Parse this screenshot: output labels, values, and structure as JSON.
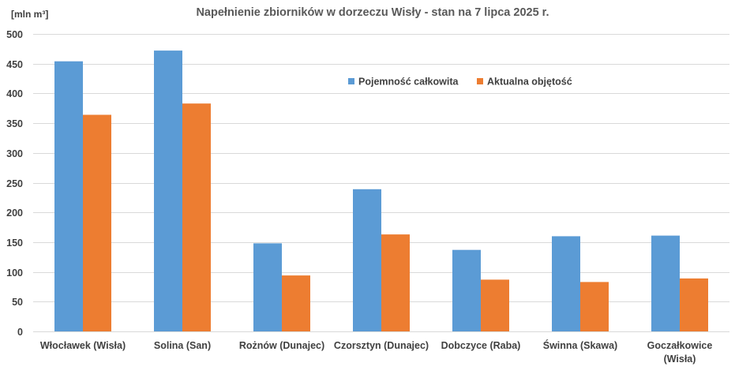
{
  "chart_data": {
    "type": "bar",
    "title": "Napełnienie zbiorników w dorzeczu Wisły - stan na 7 lipca 2025 r.",
    "ylabel": "[mln m³]",
    "xlabel": "",
    "ylim": [
      0,
      500
    ],
    "yticks": [
      0,
      50,
      100,
      150,
      200,
      250,
      300,
      350,
      400,
      450,
      500
    ],
    "grid": true,
    "legend_position": "top-right",
    "categories": [
      [
        "Włocławek (Wisła)"
      ],
      [
        "Solina (San)"
      ],
      [
        "Rożnów (Dunajec)"
      ],
      [
        "Czorsztyn (Dunajec)"
      ],
      [
        "Dobczyce (Raba)"
      ],
      [
        "Świnna (Skawa)"
      ],
      [
        "Goczałkowice",
        "(Wisła)"
      ]
    ],
    "series": [
      {
        "name": "Pojemność całkowita",
        "color": "#5b9bd5",
        "values": [
          454,
          472,
          148,
          239,
          137,
          160,
          161
        ]
      },
      {
        "name": "Aktualna objętość",
        "color": "#ed7d31",
        "values": [
          364,
          383,
          94,
          163,
          87,
          83,
          89
        ]
      }
    ]
  }
}
